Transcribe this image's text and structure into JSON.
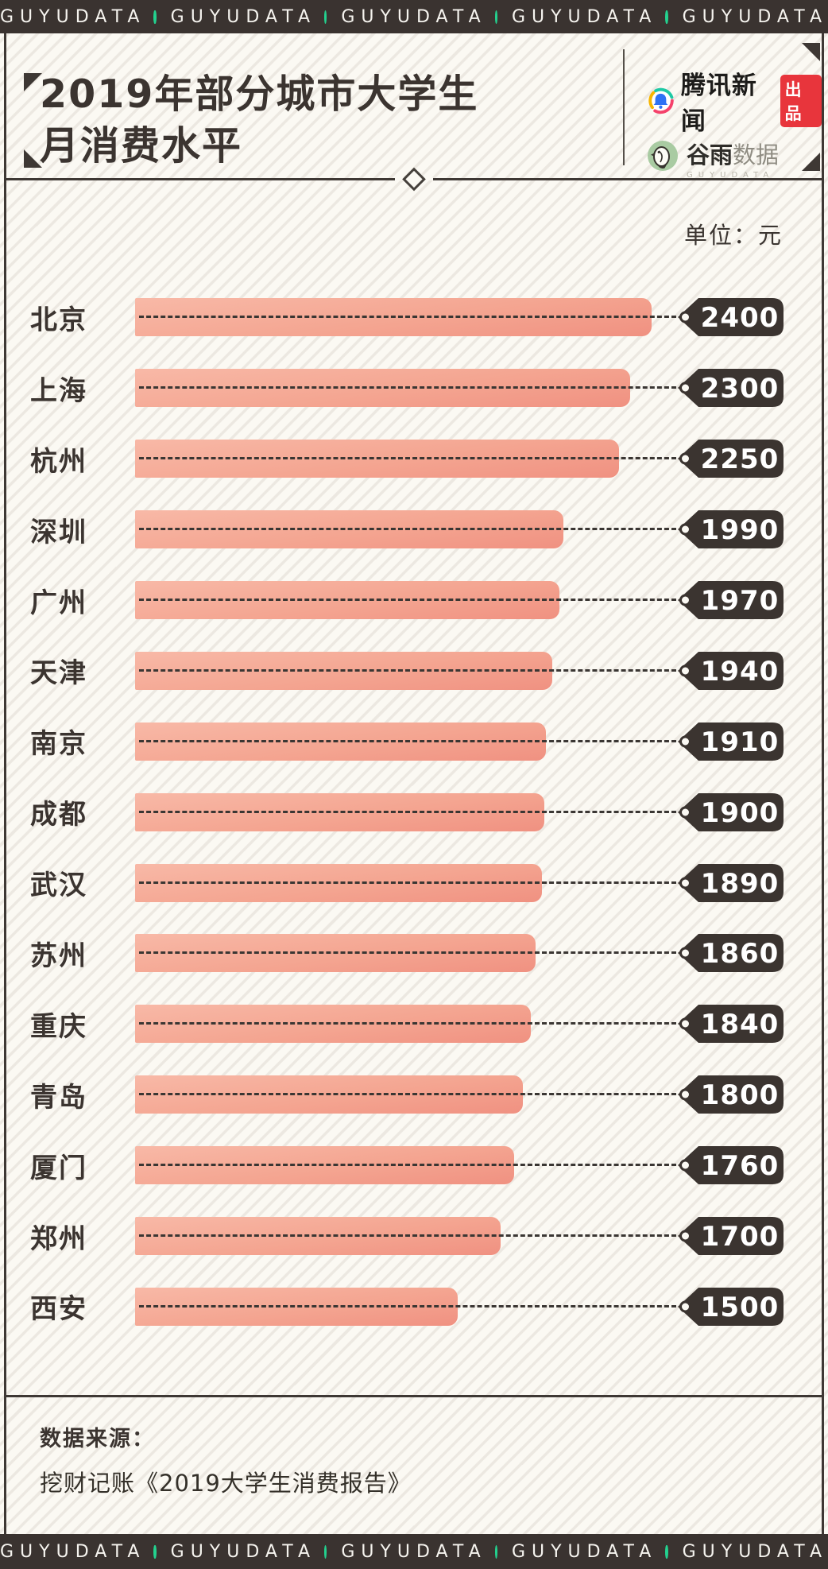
{
  "banner": {
    "repeat_label": "GUYUDATA",
    "repeat_count": 5,
    "dot_color": "#23d28f",
    "bg_color": "#3a3330",
    "text_color": "#f6f4ef"
  },
  "header": {
    "title_line1": "2019年部分城市大学生",
    "title_line2": "月消费水平",
    "publisher": {
      "name": "腾讯新闻",
      "badge": "出品",
      "badge_color": "#e8353c"
    },
    "data_brand": {
      "name_strong": "谷雨",
      "name_light": "数据",
      "subtext": "GUYUDATA"
    }
  },
  "unit_label": "单位：元",
  "chart_data": {
    "type": "bar",
    "orientation": "horizontal",
    "title": "2019年部分城市大学生月消费水平",
    "unit": "元",
    "categories": [
      "北京",
      "上海",
      "杭州",
      "深圳",
      "广州",
      "天津",
      "南京",
      "成都",
      "武汉",
      "苏州",
      "重庆",
      "青岛",
      "厦门",
      "郑州",
      "西安"
    ],
    "values": [
      2400,
      2300,
      2250,
      1990,
      1970,
      1940,
      1910,
      1900,
      1890,
      1860,
      1840,
      1800,
      1760,
      1700,
      1500
    ],
    "xlim": [
      0,
      2400
    ],
    "grid": false,
    "legend": false,
    "bar_color_top": "#f8b9a7",
    "bar_color_bottom": "#f09181",
    "tag_bg_color": "#3b3430",
    "tag_text_color": "#ffffff"
  },
  "footer": {
    "source_label": "数据来源：",
    "source_text": "挖财记账《2019大学生消费报告》"
  }
}
